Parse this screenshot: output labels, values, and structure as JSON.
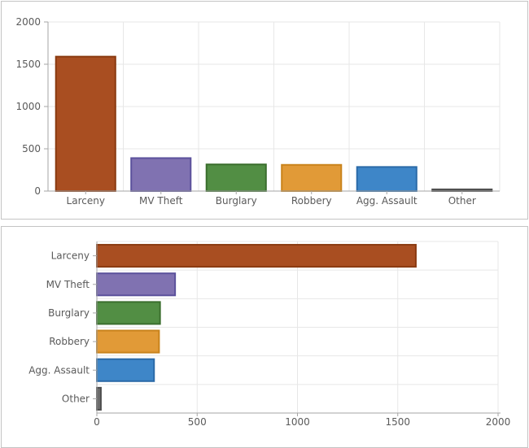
{
  "styles": {
    "background": "#ffffff",
    "panel_border": "#c4c4c4",
    "grid_color": "#e7e7e7",
    "axis_color": "#a5a5a5",
    "tick_color": "#a5a5a5",
    "label_color": "#5a5a5a"
  },
  "chart_data": [
    {
      "type": "bar",
      "orientation": "vertical",
      "title": "",
      "xlabel": "",
      "ylabel": "",
      "categories": [
        "Larceny",
        "MV Theft",
        "Burglary",
        "Robbery",
        "Agg. Assault",
        "Other"
      ],
      "values": [
        1590,
        390,
        315,
        310,
        285,
        20
      ],
      "value_axis_range": [
        0,
        2000
      ],
      "value_axis_ticks": [
        0,
        500,
        1000,
        1500,
        2000
      ],
      "grid": true,
      "legend": "none",
      "bar_fill_colors": [
        "#a94e21",
        "#8072b1",
        "#528e44",
        "#e19a37",
        "#3e86c8",
        "#6e6e6e"
      ],
      "bar_border_colors": [
        "#8a3a11",
        "#5b519c",
        "#3a6e2d",
        "#c9831c",
        "#2b6aa8",
        "#4e4e4e"
      ]
    },
    {
      "type": "bar",
      "orientation": "horizontal",
      "title": "",
      "xlabel": "",
      "ylabel": "",
      "categories": [
        "Larceny",
        "MV Theft",
        "Burglary",
        "Robbery",
        "Agg. Assault",
        "Other"
      ],
      "values": [
        1590,
        390,
        315,
        310,
        285,
        20
      ],
      "value_axis_range": [
        0,
        2000
      ],
      "value_axis_ticks": [
        0,
        500,
        1000,
        1500,
        2000
      ],
      "grid": true,
      "legend": "none",
      "bar_fill_colors": [
        "#a94e21",
        "#8072b1",
        "#528e44",
        "#e19a37",
        "#3e86c8",
        "#6e6e6e"
      ],
      "bar_border_colors": [
        "#8a3a11",
        "#5b519c",
        "#3a6e2d",
        "#c9831c",
        "#2b6aa8",
        "#4e4e4e"
      ]
    }
  ]
}
